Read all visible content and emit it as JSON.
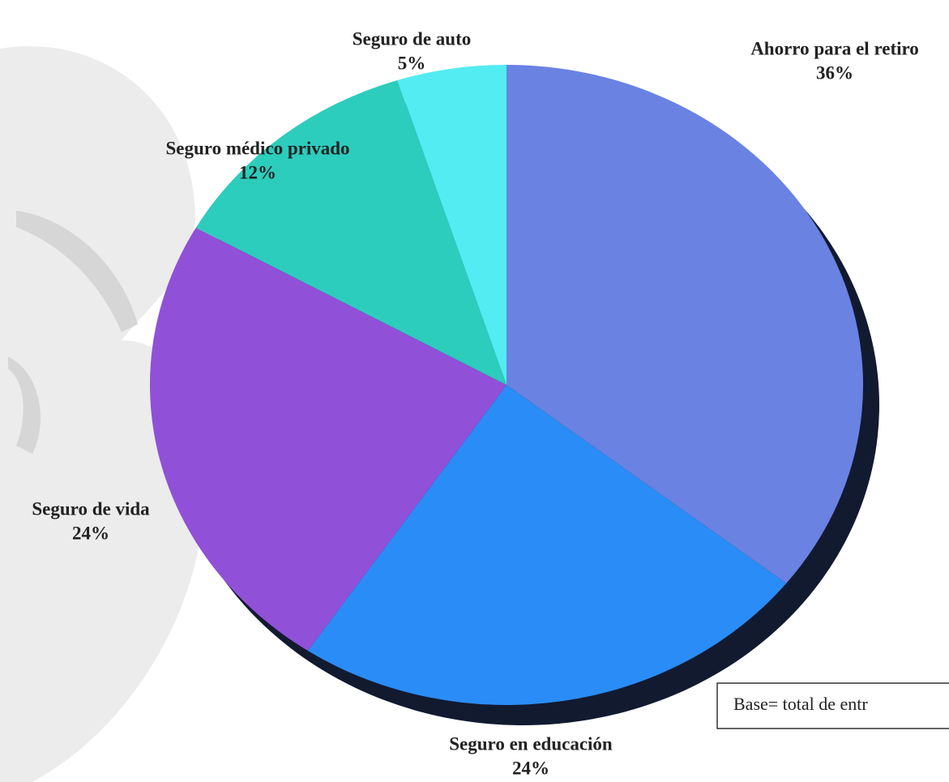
{
  "chart_data": {
    "type": "pie",
    "categories": [
      "Ahorro para el retiro",
      "Seguro en educación",
      "Seguro de vida",
      "Seguro médico privado",
      "Seguro de auto"
    ],
    "values": [
      36,
      24,
      24,
      12,
      5
    ],
    "value_labels": [
      "36%",
      "24%",
      "24%",
      "12%",
      "5%"
    ],
    "colors": [
      "#6a82e2",
      "#2a8cf6",
      "#9150d8",
      "#2ccdbd",
      "#52ecf2"
    ],
    "annotation": "Base=  total de entr"
  }
}
